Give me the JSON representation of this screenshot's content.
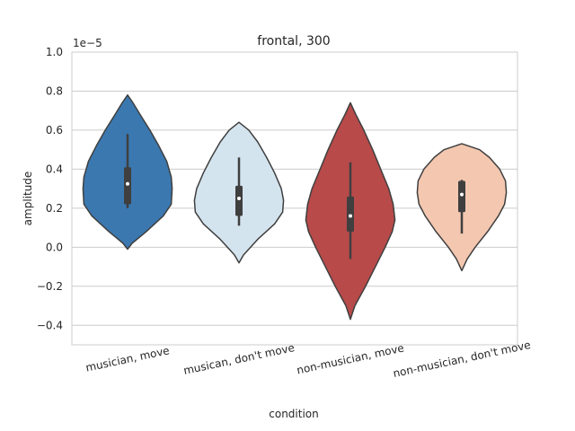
{
  "chart_data": {
    "type": "violin",
    "title": "frontal, 300",
    "xlabel": "condition",
    "ylabel": "amplitude",
    "y_offset_label": "1e−5",
    "ylim": [
      -0.5,
      1.0
    ],
    "yticks": [
      -0.4,
      -0.2,
      0.0,
      0.2,
      0.4,
      0.6,
      0.8,
      1.0
    ],
    "ytick_labels": [
      "−0.4",
      "−0.2",
      "0.0",
      "0.2",
      "0.4",
      "0.6",
      "0.8",
      "1.0"
    ],
    "grid": true,
    "categories": [
      "musician, move",
      "musican, don't move",
      "non-musician, move",
      "non-musician, don't move"
    ],
    "violins": [
      {
        "color": "#3b78b0",
        "min": 0.2,
        "q1": 0.22,
        "median": 0.325,
        "q3": 0.41,
        "max": 0.58,
        "profile": [
          [
            -0.01,
            0.0
          ],
          [
            0.02,
            0.1
          ],
          [
            0.08,
            0.42
          ],
          [
            0.16,
            0.8
          ],
          [
            0.22,
            0.98
          ],
          [
            0.3,
            1.0
          ],
          [
            0.36,
            0.98
          ],
          [
            0.44,
            0.88
          ],
          [
            0.52,
            0.7
          ],
          [
            0.6,
            0.5
          ],
          [
            0.68,
            0.28
          ],
          [
            0.74,
            0.12
          ],
          [
            0.78,
            0.0
          ]
        ]
      },
      {
        "color": "#d4e4ef",
        "min": 0.11,
        "q1": 0.16,
        "median": 0.25,
        "q3": 0.315,
        "max": 0.46,
        "profile": [
          [
            -0.08,
            0.0
          ],
          [
            -0.04,
            0.1
          ],
          [
            0.04,
            0.42
          ],
          [
            0.12,
            0.8
          ],
          [
            0.18,
            0.98
          ],
          [
            0.24,
            1.0
          ],
          [
            0.3,
            0.95
          ],
          [
            0.38,
            0.8
          ],
          [
            0.46,
            0.62
          ],
          [
            0.54,
            0.42
          ],
          [
            0.6,
            0.22
          ],
          [
            0.64,
            0.0
          ]
        ]
      },
      {
        "color": "#b84a4a",
        "min": -0.06,
        "q1": 0.08,
        "median": 0.16,
        "q3": 0.26,
        "max": 0.435,
        "profile": [
          [
            -0.37,
            0.0
          ],
          [
            -0.3,
            0.1
          ],
          [
            -0.2,
            0.34
          ],
          [
            -0.1,
            0.56
          ],
          [
            0.0,
            0.78
          ],
          [
            0.08,
            0.94
          ],
          [
            0.14,
            1.0
          ],
          [
            0.22,
            0.96
          ],
          [
            0.3,
            0.86
          ],
          [
            0.4,
            0.68
          ],
          [
            0.5,
            0.5
          ],
          [
            0.6,
            0.3
          ],
          [
            0.68,
            0.12
          ],
          [
            0.74,
            0.0
          ]
        ]
      },
      {
        "color": "#f4c7b0",
        "min": 0.07,
        "q1": 0.18,
        "median": 0.27,
        "q3": 0.34,
        "max": 0.345,
        "profile": [
          [
            -0.12,
            0.0
          ],
          [
            -0.06,
            0.12
          ],
          [
            0.0,
            0.3
          ],
          [
            0.08,
            0.58
          ],
          [
            0.16,
            0.82
          ],
          [
            0.22,
            0.96
          ],
          [
            0.28,
            1.0
          ],
          [
            0.34,
            0.98
          ],
          [
            0.4,
            0.85
          ],
          [
            0.46,
            0.62
          ],
          [
            0.5,
            0.4
          ],
          [
            0.53,
            0.0
          ]
        ]
      }
    ]
  }
}
